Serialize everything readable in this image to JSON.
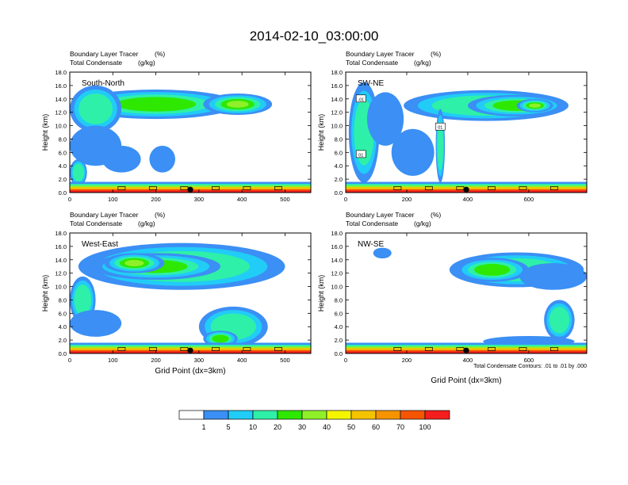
{
  "title": "2014-02-10_03:00:00",
  "chart_data": {
    "type": "heatmap",
    "subtitle_line1": "Boundary Layer Tracer",
    "subtitle_units1": "(%)",
    "subtitle_line2": "Total Condensate",
    "subtitle_units2": "(g/kg)",
    "ylabel": "Height (km)",
    "xlabel": "Grid Point (dx=3km)",
    "ylim": [
      0,
      18
    ],
    "yticks": [
      "0.0",
      "2.0",
      "4.0",
      "6.0",
      "8.0",
      "10.0",
      "12.0",
      "14.0",
      "16.0",
      "18.0"
    ],
    "contour_note": "Total Condensate Contours: .01 to .01 by .000",
    "panels": [
      {
        "name": "South-North",
        "xlim": [
          0,
          560
        ],
        "xticks": [
          "0",
          "100",
          "200",
          "300",
          "400",
          "500"
        ],
        "marker_x": 280,
        "cloud_blobs": [
          {
            "x": 200,
            "y": 13.2,
            "rx": 190,
            "ry": 2.2,
            "level": 30
          },
          {
            "x": 390,
            "y": 13.2,
            "rx": 80,
            "ry": 1.6,
            "level": 40
          },
          {
            "x": 60,
            "y": 12.5,
            "rx": 60,
            "ry": 3.5,
            "level": 20
          },
          {
            "x": 60,
            "y": 7.0,
            "rx": 60,
            "ry": 3.0,
            "level": 5
          },
          {
            "x": 120,
            "y": 5.0,
            "rx": 45,
            "ry": 2.0,
            "level": 5
          },
          {
            "x": 215,
            "y": 5.0,
            "rx": 30,
            "ry": 2.0,
            "level": 5
          },
          {
            "x": 20,
            "y": 3.0,
            "rx": 20,
            "ry": 2.0,
            "level": 20
          }
        ]
      },
      {
        "name": "SW-NE",
        "xlim": [
          0,
          790
        ],
        "xticks": [
          "0",
          "200",
          "400",
          "600"
        ],
        "marker_x": 395,
        "contour_labels": [
          "-01",
          "01",
          "01"
        ],
        "cloud_blobs": [
          {
            "x": 460,
            "y": 13.0,
            "rx": 270,
            "ry": 2.3,
            "level": 20
          },
          {
            "x": 560,
            "y": 13.0,
            "rx": 160,
            "ry": 1.6,
            "level": 30
          },
          {
            "x": 620,
            "y": 13.0,
            "rx": 60,
            "ry": 1.0,
            "level": 40
          },
          {
            "x": 60,
            "y": 9.0,
            "rx": 50,
            "ry": 7.5,
            "level": 20
          },
          {
            "x": 130,
            "y": 11.0,
            "rx": 60,
            "ry": 4.0,
            "level": 5
          },
          {
            "x": 220,
            "y": 6.0,
            "rx": 70,
            "ry": 3.5,
            "level": 5
          },
          {
            "x": 310,
            "y": 7.0,
            "rx": 15,
            "ry": 5.5,
            "level": 20
          }
        ]
      },
      {
        "name": "West-East",
        "xlim": [
          0,
          560
        ],
        "xticks": [
          "0",
          "100",
          "200",
          "300",
          "400",
          "500"
        ],
        "marker_x": 280,
        "cloud_blobs": [
          {
            "x": 260,
            "y": 13.0,
            "rx": 240,
            "ry": 3.5,
            "level": 20
          },
          {
            "x": 200,
            "y": 13.0,
            "rx": 150,
            "ry": 2.0,
            "level": 30
          },
          {
            "x": 150,
            "y": 13.5,
            "rx": 70,
            "ry": 1.5,
            "level": 40
          },
          {
            "x": 30,
            "y": 8.0,
            "rx": 30,
            "ry": 3.5,
            "level": 20
          },
          {
            "x": 60,
            "y": 4.5,
            "rx": 60,
            "ry": 2.0,
            "level": 5
          },
          {
            "x": 380,
            "y": 4.0,
            "rx": 80,
            "ry": 3.0,
            "level": 20
          },
          {
            "x": 350,
            "y": 2.2,
            "rx": 40,
            "ry": 1.2,
            "level": 30
          }
        ]
      },
      {
        "name": "NW-SE",
        "xlim": [
          0,
          790
        ],
        "xticks": [
          "0",
          "200",
          "400",
          "600"
        ],
        "marker_x": 395,
        "cloud_blobs": [
          {
            "x": 560,
            "y": 12.5,
            "rx": 220,
            "ry": 2.6,
            "level": 20
          },
          {
            "x": 480,
            "y": 12.5,
            "rx": 120,
            "ry": 1.8,
            "level": 30
          },
          {
            "x": 680,
            "y": 11.5,
            "rx": 110,
            "ry": 2.0,
            "level": 5
          },
          {
            "x": 120,
            "y": 15.0,
            "rx": 30,
            "ry": 0.8,
            "level": 5
          },
          {
            "x": 700,
            "y": 5.0,
            "rx": 50,
            "ry": 3.0,
            "level": 20
          },
          {
            "x": 600,
            "y": 1.8,
            "rx": 150,
            "ry": 0.8,
            "level": 5
          }
        ]
      }
    ],
    "colorbar": {
      "labels": [
        "1",
        "5",
        "10",
        "20",
        "30",
        "40",
        "50",
        "60",
        "70",
        "100"
      ],
      "colors": [
        "#ffffff",
        "#3b8ff5",
        "#21ccf7",
        "#2ff0a8",
        "#2fe800",
        "#8ff02a",
        "#f5f500",
        "#f5c400",
        "#f59400",
        "#f55500",
        "#f51e1e"
      ]
    }
  }
}
